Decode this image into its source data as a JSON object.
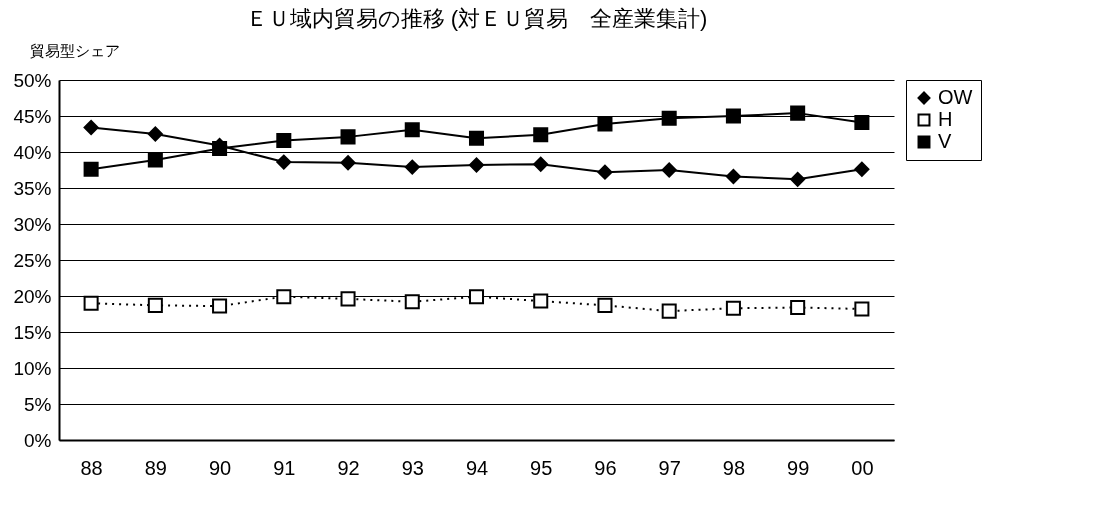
{
  "chart_data": {
    "type": "line",
    "title": "ＥＵ域内貿易の推移 (対ＥＵ貿易　全産業集計)",
    "ylabel": "貿易型シェア",
    "categories": [
      "88",
      "89",
      "90",
      "91",
      "92",
      "93",
      "94",
      "95",
      "96",
      "97",
      "98",
      "99",
      "00"
    ],
    "series": [
      {
        "name": "OW",
        "color": "#000000",
        "marker": "diamond",
        "line_style": "solid",
        "values": [
          43.4,
          42.5,
          40.9,
          38.6,
          38.5,
          37.9,
          38.2,
          38.3,
          37.2,
          37.5,
          36.6,
          36.2,
          37.6
        ]
      },
      {
        "name": "H",
        "color": "#000000",
        "marker": "square",
        "line_style": "dotted",
        "values": [
          19.0,
          18.7,
          18.6,
          19.9,
          19.6,
          19.2,
          19.9,
          19.3,
          18.7,
          17.9,
          18.3,
          18.4,
          18.2
        ]
      },
      {
        "name": "V",
        "color": "#000000",
        "marker": "square",
        "line_style": "solid",
        "values": [
          37.6,
          38.9,
          40.5,
          41.6,
          42.1,
          43.1,
          41.9,
          42.4,
          43.9,
          44.7,
          45.0,
          45.4,
          44.1
        ]
      }
    ],
    "ylim": [
      0,
      50
    ],
    "yticks": [
      {
        "value": 0,
        "label": "0%"
      },
      {
        "value": 5,
        "label": "5%"
      },
      {
        "value": 10,
        "label": "10%"
      },
      {
        "value": 15,
        "label": "15%"
      },
      {
        "value": 20,
        "label": "20%"
      },
      {
        "value": 25,
        "label": "25%"
      },
      {
        "value": 30,
        "label": "30%"
      },
      {
        "value": 35,
        "label": "35%"
      },
      {
        "value": 40,
        "label": "40%"
      },
      {
        "value": 45,
        "label": "45%"
      },
      {
        "value": 50,
        "label": "50%"
      }
    ],
    "grid": "y",
    "legend": "right"
  }
}
